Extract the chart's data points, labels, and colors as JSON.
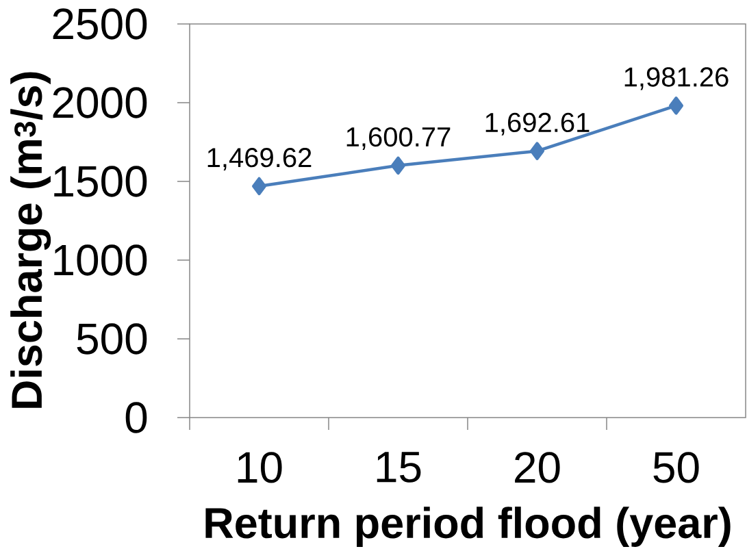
{
  "chart_data": {
    "type": "line",
    "xlabel": "Return period flood (year)",
    "ylabel": "Discharge (m$^{3}$/s)",
    "categories": [
      "10",
      "15",
      "20",
      "50"
    ],
    "values": [
      1469.62,
      1600.77,
      1692.61,
      1981.26
    ],
    "value_labels": [
      "1,469.62",
      "1,600.77",
      "1,692.61",
      "1,981.26"
    ],
    "color": "#4a7ebb",
    "marker": "diamond",
    "line_style": "solid",
    "ylim": [
      0,
      2500
    ],
    "yticks": [
      0,
      500,
      1000,
      1500,
      2000,
      2500
    ]
  }
}
